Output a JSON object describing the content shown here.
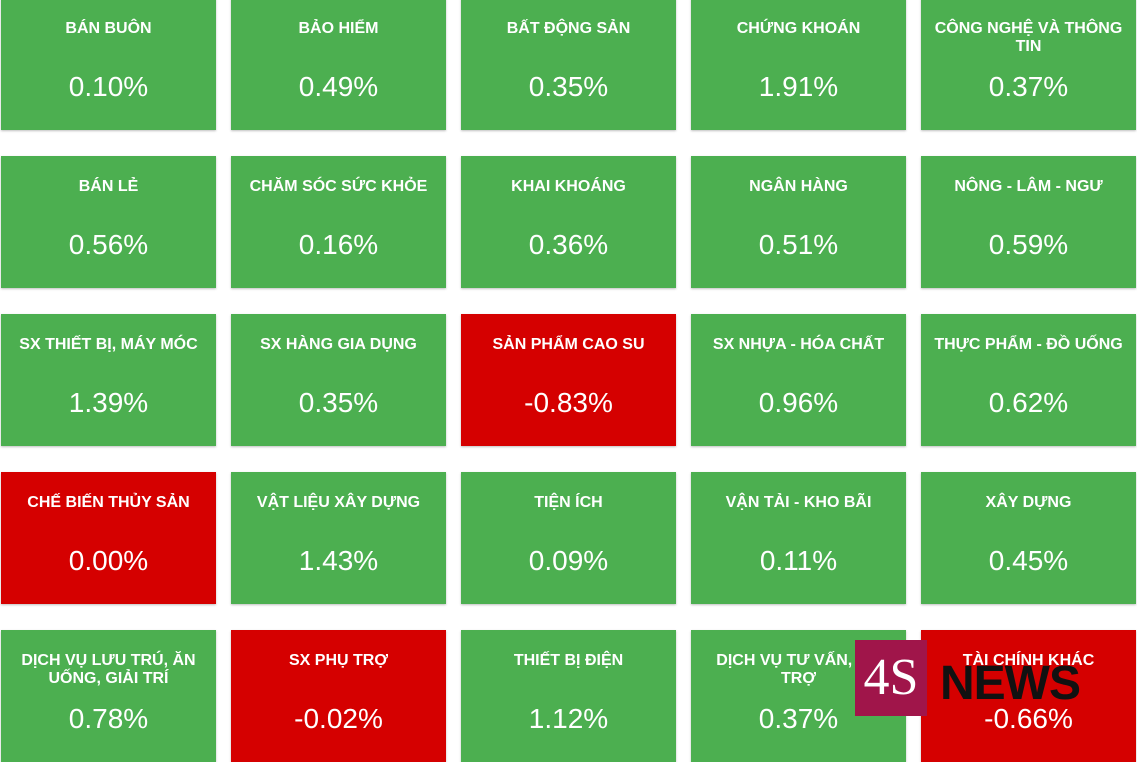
{
  "tiles": [
    {
      "label": "BÁN BUÔN",
      "value": "0.10%",
      "color": "#4caf50"
    },
    {
      "label": "BẢO HIỂM",
      "value": "0.49%",
      "color": "#4caf50"
    },
    {
      "label": "BẤT ĐỘNG SẢN",
      "value": "0.35%",
      "color": "#4caf50"
    },
    {
      "label": "CHỨNG KHOÁN",
      "value": "1.91%",
      "color": "#4caf50"
    },
    {
      "label": "CÔNG NGHỆ VÀ THÔNG TIN",
      "value": "0.37%",
      "color": "#4caf50"
    },
    {
      "label": "BÁN LẺ",
      "value": "0.56%",
      "color": "#4caf50"
    },
    {
      "label": "CHĂM SÓC SỨC KHỎE",
      "value": "0.16%",
      "color": "#4caf50"
    },
    {
      "label": "KHAI KHOÁNG",
      "value": "0.36%",
      "color": "#4caf50"
    },
    {
      "label": "NGÂN HÀNG",
      "value": "0.51%",
      "color": "#4caf50"
    },
    {
      "label": "NÔNG - LÂM - NGƯ",
      "value": "0.59%",
      "color": "#4caf50"
    },
    {
      "label": "SX THIẾT BỊ, MÁY MÓC",
      "value": "1.39%",
      "color": "#4caf50"
    },
    {
      "label": "SX HÀNG GIA DỤNG",
      "value": "0.35%",
      "color": "#4caf50"
    },
    {
      "label": "SẢN PHẨM CAO SU",
      "value": "-0.83%",
      "color": "#d50000"
    },
    {
      "label": "SX NHỰA - HÓA CHẤT",
      "value": "0.96%",
      "color": "#4caf50"
    },
    {
      "label": "THỰC PHẨM - ĐỒ UỐNG",
      "value": "0.62%",
      "color": "#4caf50"
    },
    {
      "label": "CHẾ BIẾN THỦY SẢN",
      "value": "0.00%",
      "color": "#d50000"
    },
    {
      "label": "VẬT LIỆU XÂY DỰNG",
      "value": "1.43%",
      "color": "#4caf50"
    },
    {
      "label": "TIỆN ÍCH",
      "value": "0.09%",
      "color": "#4caf50"
    },
    {
      "label": "VẬN TẢI - KHO BÃI",
      "value": "0.11%",
      "color": "#4caf50"
    },
    {
      "label": "XÂY DỰNG",
      "value": "0.45%",
      "color": "#4caf50"
    },
    {
      "label": "DỊCH VỤ LƯU TRÚ, ĂN UỐNG, GIẢI TRÍ",
      "value": "0.78%",
      "color": "#4caf50"
    },
    {
      "label": "SX PHỤ TRỢ",
      "value": "-0.02%",
      "color": "#d50000"
    },
    {
      "label": "THIẾT BỊ ĐIỆN",
      "value": "1.12%",
      "color": "#4caf50"
    },
    {
      "label": "DỊCH VỤ TƯ VẤN, HỖ TRỢ",
      "value": "0.37%",
      "color": "#4caf50"
    },
    {
      "label": "TÀI CHÍNH KHÁC",
      "value": "-0.66%",
      "color": "#d50000"
    }
  ],
  "watermark": {
    "mark": "4S",
    "text": "NEWS"
  }
}
